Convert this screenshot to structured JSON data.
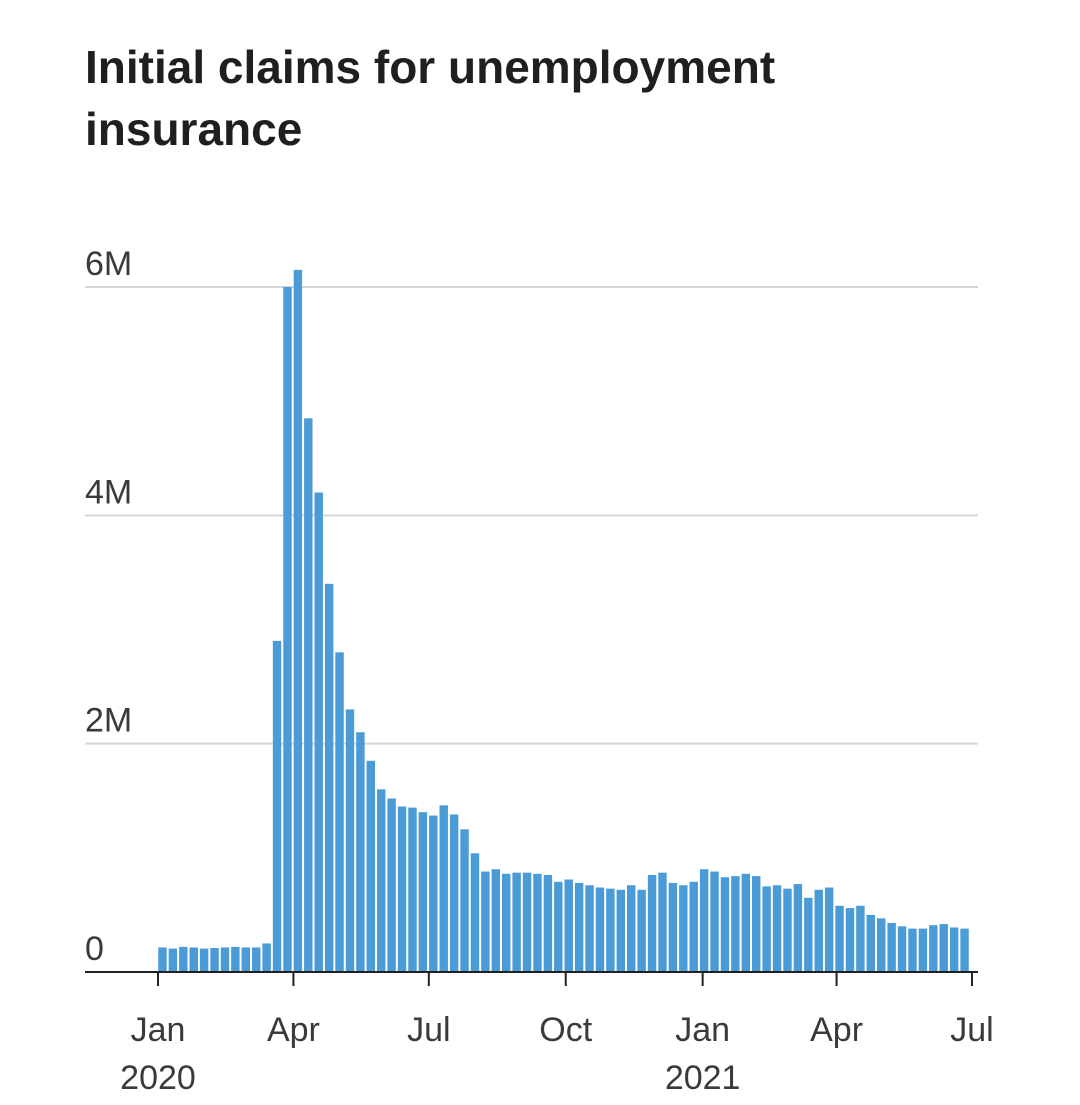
{
  "chart_data": {
    "type": "bar",
    "title": "Initial claims for unemployment insurance",
    "xlabel": "",
    "ylabel": "",
    "ylim": [
      0,
      6000000
    ],
    "y_ticks": [
      {
        "value": 0,
        "label": "0"
      },
      {
        "value": 2000000,
        "label": "2M"
      },
      {
        "value": 4000000,
        "label": "4M"
      },
      {
        "value": 6000000,
        "label": "6M"
      }
    ],
    "x_ticks": [
      {
        "date": "2020-01-01",
        "line1": "Jan",
        "line2": "2020"
      },
      {
        "date": "2020-04-01",
        "line1": "Apr",
        "line2": ""
      },
      {
        "date": "2020-07-01",
        "line1": "Jul",
        "line2": ""
      },
      {
        "date": "2020-10-01",
        "line1": "Oct",
        "line2": ""
      },
      {
        "date": "2021-01-01",
        "line1": "Jan",
        "line2": "2021"
      },
      {
        "date": "2021-04-01",
        "line1": "Apr",
        "line2": ""
      },
      {
        "date": "2021-07-01",
        "line1": "Jul",
        "line2": ""
      }
    ],
    "bar_color": "#4a9bd6",
    "grid": true,
    "series": [
      {
        "x": [
          "2020-01-04",
          "2020-01-11",
          "2020-01-18",
          "2020-01-25",
          "2020-02-01",
          "2020-02-08",
          "2020-02-15",
          "2020-02-22",
          "2020-02-29",
          "2020-03-07",
          "2020-03-14",
          "2020-03-21",
          "2020-03-28",
          "2020-04-04",
          "2020-04-11",
          "2020-04-18",
          "2020-04-25",
          "2020-05-02",
          "2020-05-09",
          "2020-05-16",
          "2020-05-23",
          "2020-05-30",
          "2020-06-06",
          "2020-06-13",
          "2020-06-20",
          "2020-06-27",
          "2020-07-04",
          "2020-07-11",
          "2020-07-18",
          "2020-07-25",
          "2020-08-01",
          "2020-08-08",
          "2020-08-15",
          "2020-08-22",
          "2020-08-29",
          "2020-09-05",
          "2020-09-12",
          "2020-09-19",
          "2020-09-26",
          "2020-10-03",
          "2020-10-10",
          "2020-10-17",
          "2020-10-24",
          "2020-10-31",
          "2020-11-07",
          "2020-11-14",
          "2020-11-21",
          "2020-11-28",
          "2020-12-05",
          "2020-12-12",
          "2020-12-19",
          "2020-12-26",
          "2021-01-02",
          "2021-01-09",
          "2021-01-16",
          "2021-01-23",
          "2021-01-30",
          "2021-02-06",
          "2021-02-13",
          "2021-02-20",
          "2021-02-27",
          "2021-03-06",
          "2021-03-13",
          "2021-03-20",
          "2021-03-27",
          "2021-04-03",
          "2021-04-10",
          "2021-04-17",
          "2021-04-24",
          "2021-05-01",
          "2021-05-08",
          "2021-05-15",
          "2021-05-22",
          "2021-05-29",
          "2021-06-05",
          "2021-06-12",
          "2021-06-19",
          "2021-06-26"
        ],
        "values": [
          215000,
          205000,
          220000,
          215000,
          205000,
          210000,
          215000,
          220000,
          215000,
          215000,
          250000,
          2900000,
          6000000,
          6150000,
          4850000,
          4200000,
          3400000,
          2800000,
          2300000,
          2100000,
          1850000,
          1600000,
          1520000,
          1450000,
          1440000,
          1400000,
          1370000,
          1460000,
          1380000,
          1250000,
          1040000,
          880000,
          900000,
          860000,
          870000,
          870000,
          860000,
          850000,
          790000,
          810000,
          780000,
          760000,
          740000,
          730000,
          720000,
          760000,
          720000,
          850000,
          870000,
          780000,
          760000,
          790000,
          900000,
          880000,
          830000,
          840000,
          860000,
          840000,
          750000,
          760000,
          730000,
          770000,
          650000,
          720000,
          740000,
          580000,
          560000,
          580000,
          500000,
          470000,
          430000,
          400000,
          380000,
          380000,
          410000,
          420000,
          390000,
          380000
        ]
      }
    ]
  }
}
